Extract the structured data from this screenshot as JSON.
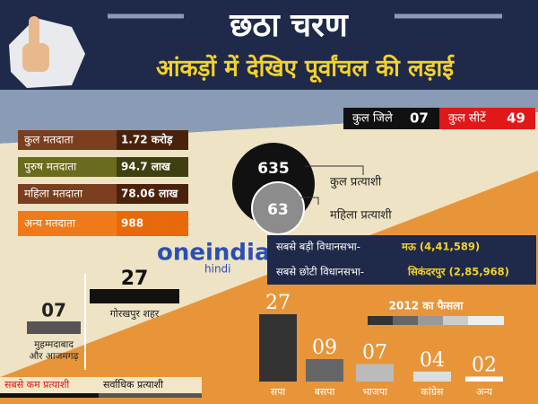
{
  "header": {
    "title": "छठा चरण",
    "subtitle": "आंकड़ों में देखिए पूर्वांचल की लड़ाई"
  },
  "summary": [
    {
      "label": "कुल जिले",
      "value": "07"
    },
    {
      "label": "कुल सीटें",
      "value": "49"
    }
  ],
  "voters": [
    {
      "label": "कुल मतदाता",
      "value": "1.72 करोड़"
    },
    {
      "label": "पुरुष मतदाता",
      "value": "94.7 लाख"
    },
    {
      "label": "महिला मतदाता",
      "value": "78.06 लाख"
    },
    {
      "label": "अन्य मतदाता",
      "value": "988"
    }
  ],
  "candidates": [
    {
      "value": "635",
      "label": "कुल प्रत्याशी"
    },
    {
      "value": "63",
      "label": "महिला प्रत्याशी"
    }
  ],
  "logo": {
    "name": "oneindia",
    "sub": "hindi"
  },
  "constituencies": [
    {
      "label": "सबसे बड़ी विधानसभा-",
      "value": "मऊ (4,41,589)"
    },
    {
      "label": "सबसे छोटी विधानसभा-",
      "value": "सिकंदरपुर (2,85,968)"
    }
  ],
  "most": {
    "value": "27",
    "label": "गोरखपुर शहर",
    "caption": "सर्वाधिक प्रत्याशी"
  },
  "least": {
    "value": "07",
    "label": [
      "मुहम्मदाबाद",
      "और आजमगढ़"
    ],
    "caption": "सबसे कम प्रत्याशी"
  },
  "results_2012": {
    "type": "bar",
    "title": "2012 का फैसला",
    "categories": [
      "सपा",
      "बसपा",
      "भाजपा",
      "कांग्रेस",
      "अन्य"
    ],
    "values": [
      27,
      9,
      7,
      4,
      2
    ],
    "value_labels": [
      "27",
      "09",
      "07",
      "04",
      "02"
    ],
    "ylim": [
      0,
      27
    ]
  }
}
